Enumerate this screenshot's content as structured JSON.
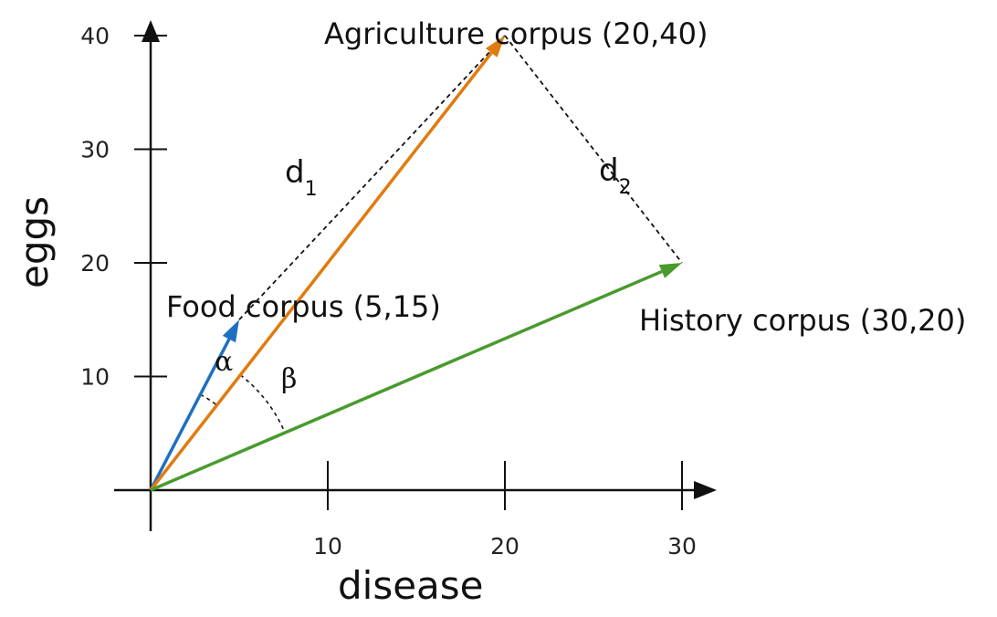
{
  "chart_data": {
    "type": "vector-diagram",
    "xlabel": "disease",
    "ylabel": "eggs",
    "x_ticks": [
      "10",
      "20",
      "30"
    ],
    "y_ticks": [
      "10",
      "20",
      "30",
      "40"
    ],
    "x_tick_values": [
      10,
      20,
      30
    ],
    "y_tick_values": [
      10,
      20,
      30,
      40
    ],
    "vectors": [
      {
        "label": "Food corpus (5,15)",
        "x": 5,
        "y": 15,
        "color": "#1f6fc1"
      },
      {
        "label": "Agriculture corpus (20,40)",
        "x": 20,
        "y": 40,
        "color": "#e07b10"
      },
      {
        "label": "History corpus (30,20)",
        "x": 30,
        "y": 20,
        "color": "#4a9a2e"
      }
    ],
    "distances": [
      {
        "name": "d",
        "subscript": "1",
        "from": "Food corpus (5,15)",
        "to": "Agriculture corpus (20,40)"
      },
      {
        "name": "d",
        "subscript": "2",
        "from": "Agriculture corpus (20,40)",
        "to": "History corpus (30,20)"
      }
    ],
    "angles": [
      {
        "symbol": "α",
        "between": [
          "Food corpus (5,15)",
          "Agriculture corpus (20,40)"
        ]
      },
      {
        "symbol": "β",
        "between": [
          "Agriculture corpus (20,40)",
          "History corpus (30,20)"
        ]
      }
    ],
    "grid": false
  }
}
